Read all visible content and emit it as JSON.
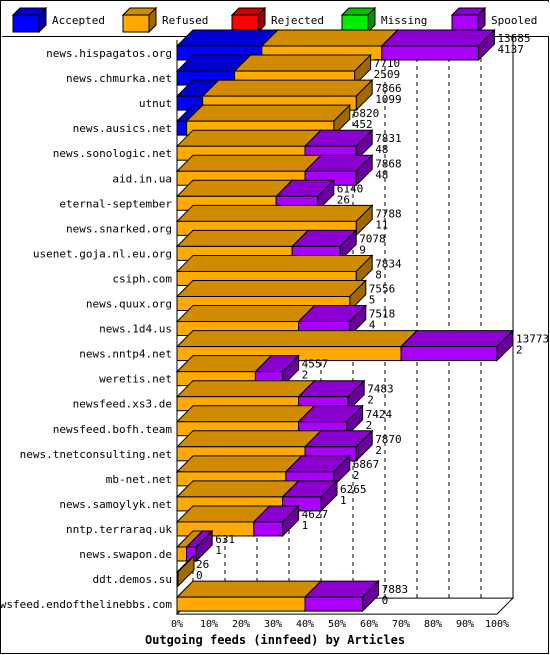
{
  "chart_data": {
    "type": "bar",
    "orientation": "horizontal",
    "stacked": true,
    "three_d": true,
    "title": "Outgoing feeds (innfeed) by Articles",
    "xlabel": "Outgoing feeds (innfeed) by Articles",
    "x_ticks": [
      "0%",
      "10%",
      "20%",
      "30%",
      "40%",
      "50%",
      "60%",
      "70%",
      "80%",
      "90%",
      "100%"
    ],
    "xlim": [
      0,
      100
    ],
    "legend_position": "top",
    "series": [
      {
        "name": "Accepted",
        "color": "#0000ff"
      },
      {
        "name": "Refused",
        "color": "#ffaa00"
      },
      {
        "name": "Rejected",
        "color": "#ff0000"
      },
      {
        "name": "Missing",
        "color": "#00ee00"
      },
      {
        "name": "Spooled",
        "color": "#aa00ff"
      }
    ],
    "rows": [
      {
        "name": "news.hispagatos.org",
        "offered": "13685",
        "second": "4137",
        "pct": {
          "Accepted": 26.5,
          "Refused": 37.5,
          "Rejected": 0,
          "Missing": 0,
          "Spooled": 30.2
        }
      },
      {
        "name": "news.chmurka.net",
        "offered": "7710",
        "second": "2509",
        "pct": {
          "Accepted": 18.0,
          "Refused": 37.5,
          "Rejected": 0,
          "Missing": 0,
          "Spooled": 0
        }
      },
      {
        "name": "utnut",
        "offered": "7866",
        "second": "1099",
        "pct": {
          "Accepted": 8.0,
          "Refused": 48.0,
          "Rejected": 0,
          "Missing": 0,
          "Spooled": 0
        }
      },
      {
        "name": "news.ausics.net",
        "offered": "6820",
        "second": "452",
        "pct": {
          "Accepted": 3.0,
          "Refused": 46.0,
          "Rejected": 0,
          "Missing": 0,
          "Spooled": 0
        }
      },
      {
        "name": "news.sonologic.net",
        "offered": "7831",
        "second": "48",
        "pct": {
          "Accepted": 0,
          "Refused": 40.0,
          "Rejected": 0,
          "Missing": 0,
          "Spooled": 16.0
        }
      },
      {
        "name": "aid.in.ua",
        "offered": "7868",
        "second": "48",
        "pct": {
          "Accepted": 0,
          "Refused": 40.0,
          "Rejected": 0,
          "Missing": 0,
          "Spooled": 16.0
        }
      },
      {
        "name": "eternal-september",
        "offered": "6140",
        "second": "26",
        "pct": {
          "Accepted": 0,
          "Refused": 31.0,
          "Rejected": 0,
          "Missing": 0,
          "Spooled": 13.0
        }
      },
      {
        "name": "news.snarked.org",
        "offered": "7788",
        "second": "11",
        "pct": {
          "Accepted": 0,
          "Refused": 56.0,
          "Rejected": 0,
          "Missing": 0,
          "Spooled": 0
        }
      },
      {
        "name": "usenet.goja.nl.eu.org",
        "offered": "7078",
        "second": "9",
        "pct": {
          "Accepted": 0,
          "Refused": 36.0,
          "Rejected": 0,
          "Missing": 0,
          "Spooled": 15.0
        }
      },
      {
        "name": "csiph.com",
        "offered": "7834",
        "second": "8",
        "pct": {
          "Accepted": 0,
          "Refused": 56.0,
          "Rejected": 0,
          "Missing": 0,
          "Spooled": 0
        }
      },
      {
        "name": "news.quux.org",
        "offered": "7556",
        "second": "5",
        "pct": {
          "Accepted": 0,
          "Refused": 54.0,
          "Rejected": 0,
          "Missing": 0,
          "Spooled": 0
        }
      },
      {
        "name": "news.1d4.us",
        "offered": "7518",
        "second": "4",
        "pct": {
          "Accepted": 0,
          "Refused": 38.0,
          "Rejected": 0,
          "Missing": 0,
          "Spooled": 16.0
        }
      },
      {
        "name": "news.nntp4.net",
        "offered": "13773",
        "second": "2",
        "pct": {
          "Accepted": 0,
          "Refused": 70.0,
          "Rejected": 0,
          "Missing": 0,
          "Spooled": 30.0
        }
      },
      {
        "name": "weretis.net",
        "offered": "4557",
        "second": "2",
        "pct": {
          "Accepted": 0,
          "Refused": 24.5,
          "Rejected": 0,
          "Missing": 0,
          "Spooled": 8.5
        }
      },
      {
        "name": "newsfeed.xs3.de",
        "offered": "7483",
        "second": "2",
        "pct": {
          "Accepted": 0,
          "Refused": 38.0,
          "Rejected": 0,
          "Missing": 0,
          "Spooled": 15.5
        }
      },
      {
        "name": "newsfeed.bofh.team",
        "offered": "7424",
        "second": "2",
        "pct": {
          "Accepted": 0,
          "Refused": 38.0,
          "Rejected": 0,
          "Missing": 0,
          "Spooled": 15.0
        }
      },
      {
        "name": "news.tnetconsulting.net",
        "offered": "7870",
        "second": "2",
        "pct": {
          "Accepted": 0,
          "Refused": 40.0,
          "Rejected": 0,
          "Missing": 0,
          "Spooled": 16.0
        }
      },
      {
        "name": "mb-net.net",
        "offered": "6867",
        "second": "2",
        "pct": {
          "Accepted": 0,
          "Refused": 34.0,
          "Rejected": 0,
          "Missing": 0,
          "Spooled": 15.0
        }
      },
      {
        "name": "news.samoylyk.net",
        "offered": "6265",
        "second": "1",
        "pct": {
          "Accepted": 0,
          "Refused": 33.0,
          "Rejected": 0,
          "Missing": 0,
          "Spooled": 12.0
        }
      },
      {
        "name": "nntp.terraraq.uk",
        "offered": "4627",
        "second": "1",
        "pct": {
          "Accepted": 0,
          "Refused": 24.0,
          "Rejected": 0,
          "Missing": 0,
          "Spooled": 9.0
        }
      },
      {
        "name": "news.swapon.de",
        "offered": "631",
        "second": "1",
        "pct": {
          "Accepted": 0,
          "Refused": 3.0,
          "Rejected": 0,
          "Missing": 0,
          "Spooled": 3.0
        }
      },
      {
        "name": "ddt.demos.su",
        "offered": "26",
        "second": "0",
        "pct": {
          "Accepted": 0,
          "Refused": 0,
          "Rejected": 0,
          "Missing": 0,
          "Spooled": 0
        }
      },
      {
        "name": "newsfeed.endofthelinebbs.com",
        "offered": "7883",
        "second": "0",
        "pct": {
          "Accepted": 0,
          "Refused": 40.0,
          "Rejected": 0,
          "Missing": 0,
          "Spooled": 18.0
        }
      }
    ]
  }
}
